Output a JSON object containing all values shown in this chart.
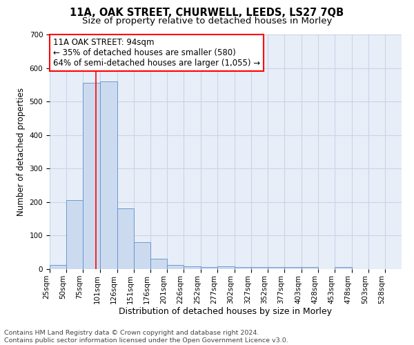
{
  "title1": "11A, OAK STREET, CHURWELL, LEEDS, LS27 7QB",
  "title2": "Size of property relative to detached houses in Morley",
  "xlabel": "Distribution of detached houses by size in Morley",
  "ylabel": "Number of detached properties",
  "bar_edges": [
    25,
    50,
    75,
    101,
    126,
    151,
    176,
    201,
    226,
    252,
    277,
    302,
    327,
    352,
    377,
    403,
    428,
    453,
    478,
    503,
    528,
    553
  ],
  "bar_heights": [
    12,
    206,
    555,
    560,
    181,
    80,
    30,
    12,
    8,
    6,
    8,
    7,
    7,
    6,
    6,
    6,
    0,
    7,
    0,
    0,
    0
  ],
  "bar_color": "#ccdaf0",
  "bar_edgecolor": "#5b8fc9",
  "red_line_x": 94,
  "annotation_line1": "11A OAK STREET: 94sqm",
  "annotation_line2": "← 35% of detached houses are smaller (580)",
  "annotation_line3": "64% of semi-detached houses are larger (1,055) →",
  "ylim": [
    0,
    700
  ],
  "yticks": [
    0,
    100,
    200,
    300,
    400,
    500,
    600,
    700
  ],
  "xtick_labels": [
    "25sqm",
    "50sqm",
    "75sqm",
    "101sqm",
    "126sqm",
    "151sqm",
    "176sqm",
    "201sqm",
    "226sqm",
    "252sqm",
    "277sqm",
    "302sqm",
    "327sqm",
    "352sqm",
    "377sqm",
    "403sqm",
    "428sqm",
    "453sqm",
    "478sqm",
    "503sqm",
    "528sqm"
  ],
  "grid_color": "#c8d4e8",
  "bg_color": "#e8eef8",
  "footnote": "Contains HM Land Registry data © Crown copyright and database right 2024.\nContains public sector information licensed under the Open Government Licence v3.0.",
  "annotation_fontsize": 8.5,
  "title1_fontsize": 10.5,
  "title2_fontsize": 9.5,
  "xlabel_fontsize": 9,
  "ylabel_fontsize": 8.5,
  "tick_fontsize": 7.5,
  "footnote_fontsize": 6.8
}
